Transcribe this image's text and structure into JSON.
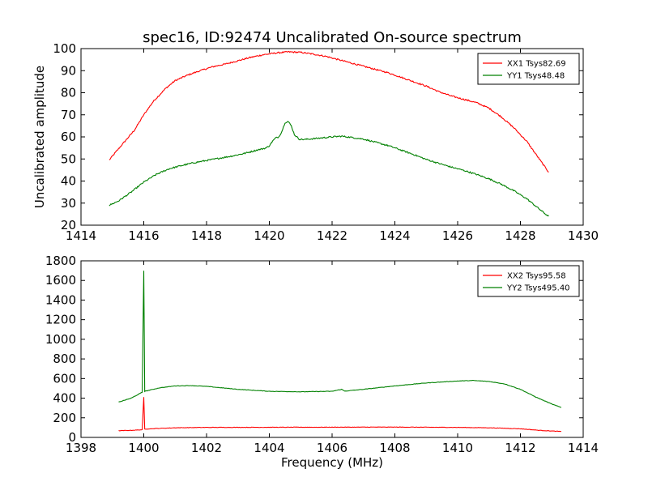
{
  "title": "spec16, ID:92474 Uncalibrated On-source spectrum",
  "chart_data": [
    {
      "type": "line",
      "ylabel": "Uncalibrated amplitude",
      "xlabel": "",
      "xlim": [
        1414,
        1430
      ],
      "ylim": [
        20,
        100
      ],
      "x_ticks": [
        1414,
        1416,
        1418,
        1420,
        1422,
        1424,
        1426,
        1428,
        1430
      ],
      "y_ticks": [
        20,
        30,
        40,
        50,
        60,
        70,
        80,
        90,
        100
      ],
      "legend_position": "top-right",
      "grid": false,
      "series": [
        {
          "name": "XX1 Tsys82.69",
          "color": "#ff0000",
          "points": [
            [
              1414.9,
              49.5
            ],
            [
              1415.1,
              53
            ],
            [
              1415.4,
              58
            ],
            [
              1415.7,
              63
            ],
            [
              1416.0,
              70
            ],
            [
              1416.3,
              76
            ],
            [
              1416.7,
              82
            ],
            [
              1417.0,
              85.5
            ],
            [
              1417.4,
              88
            ],
            [
              1417.8,
              90
            ],
            [
              1418.2,
              91.8
            ],
            [
              1418.6,
              93
            ],
            [
              1419.0,
              94.5
            ],
            [
              1419.4,
              96
            ],
            [
              1419.8,
              97.2
            ],
            [
              1420.2,
              98
            ],
            [
              1420.6,
              98.5
            ],
            [
              1421.0,
              98.3
            ],
            [
              1421.4,
              97.5
            ],
            [
              1421.8,
              96.5
            ],
            [
              1422.2,
              95
            ],
            [
              1422.6,
              93.5
            ],
            [
              1423.0,
              92
            ],
            [
              1423.4,
              90.5
            ],
            [
              1423.8,
              89
            ],
            [
              1424.2,
              87
            ],
            [
              1424.6,
              85
            ],
            [
              1425.0,
              83
            ],
            [
              1425.4,
              80.5
            ],
            [
              1425.8,
              78.5
            ],
            [
              1426.2,
              77
            ],
            [
              1426.6,
              75.5
            ],
            [
              1427.0,
              73
            ],
            [
              1427.4,
              69
            ],
            [
              1427.8,
              64
            ],
            [
              1428.2,
              58
            ],
            [
              1428.5,
              52
            ],
            [
              1428.8,
              46
            ],
            [
              1428.9,
              44
            ]
          ]
        },
        {
          "name": "YY1 Tsys48.48",
          "color": "#008000",
          "points": [
            [
              1414.9,
              29
            ],
            [
              1415.2,
              31
            ],
            [
              1415.6,
              35
            ],
            [
              1416.0,
              39.5
            ],
            [
              1416.4,
              43
            ],
            [
              1416.8,
              45.5
            ],
            [
              1417.2,
              47
            ],
            [
              1417.6,
              48.3
            ],
            [
              1418.0,
              49.3
            ],
            [
              1418.4,
              50.3
            ],
            [
              1418.8,
              51.3
            ],
            [
              1419.2,
              52.5
            ],
            [
              1419.6,
              54
            ],
            [
              1419.9,
              55
            ],
            [
              1420.0,
              56
            ],
            [
              1420.1,
              58
            ],
            [
              1420.2,
              59.5
            ],
            [
              1420.3,
              60
            ],
            [
              1420.4,
              62.5
            ],
            [
              1420.5,
              66.5
            ],
            [
              1420.6,
              67
            ],
            [
              1420.7,
              65
            ],
            [
              1420.8,
              61
            ],
            [
              1420.95,
              59
            ],
            [
              1421.1,
              58.8
            ],
            [
              1421.5,
              59.3
            ],
            [
              1422.0,
              60
            ],
            [
              1422.3,
              60.3
            ],
            [
              1422.6,
              59.8
            ],
            [
              1423.0,
              59
            ],
            [
              1423.4,
              57.5
            ],
            [
              1423.8,
              56
            ],
            [
              1424.2,
              54
            ],
            [
              1424.6,
              52
            ],
            [
              1425.0,
              49.8
            ],
            [
              1425.4,
              48
            ],
            [
              1425.8,
              46.3
            ],
            [
              1426.2,
              44.8
            ],
            [
              1426.6,
              43
            ],
            [
              1427.0,
              41
            ],
            [
              1427.4,
              38.5
            ],
            [
              1427.8,
              35.5
            ],
            [
              1428.2,
              32
            ],
            [
              1428.5,
              28.5
            ],
            [
              1428.8,
              25
            ],
            [
              1428.9,
              24
            ]
          ]
        }
      ]
    },
    {
      "type": "line",
      "ylabel": "",
      "xlabel": "Frequency (MHz)",
      "xlim": [
        1398,
        1414
      ],
      "ylim": [
        0,
        1800
      ],
      "x_ticks": [
        1398,
        1400,
        1402,
        1404,
        1406,
        1408,
        1410,
        1412,
        1414
      ],
      "y_ticks": [
        0,
        200,
        400,
        600,
        800,
        1000,
        1200,
        1400,
        1600,
        1800
      ],
      "legend_position": "top-right",
      "grid": false,
      "series": [
        {
          "name": "XX2 Tsys95.58",
          "color": "#ff0000",
          "points": [
            [
              1399.2,
              68
            ],
            [
              1399.6,
              72
            ],
            [
              1399.95,
              78
            ],
            [
              1400.0,
              410
            ],
            [
              1400.03,
              85
            ],
            [
              1400.5,
              92
            ],
            [
              1401.0,
              98
            ],
            [
              1402.0,
              102
            ],
            [
              1404.0,
              103
            ],
            [
              1406.0,
              104
            ],
            [
              1408.0,
              105
            ],
            [
              1410.0,
              102
            ],
            [
              1411.0,
              98
            ],
            [
              1412.0,
              88
            ],
            [
              1412.6,
              72
            ],
            [
              1413.3,
              60
            ]
          ]
        },
        {
          "name": "YY2 Tsys495.40",
          "color": "#008000",
          "points": [
            [
              1399.2,
              360
            ],
            [
              1399.6,
              400
            ],
            [
              1399.95,
              460
            ],
            [
              1400.0,
              1700
            ],
            [
              1400.03,
              470
            ],
            [
              1400.5,
              505
            ],
            [
              1401.0,
              525
            ],
            [
              1401.5,
              528
            ],
            [
              1402.0,
              520
            ],
            [
              1402.5,
              505
            ],
            [
              1403.0,
              490
            ],
            [
              1404.0,
              470
            ],
            [
              1405.0,
              465
            ],
            [
              1406.0,
              470
            ],
            [
              1406.3,
              490
            ],
            [
              1406.4,
              472
            ],
            [
              1407.0,
              490
            ],
            [
              1408.0,
              525
            ],
            [
              1409.0,
              555
            ],
            [
              1410.0,
              575
            ],
            [
              1410.5,
              580
            ],
            [
              1411.0,
              570
            ],
            [
              1411.5,
              545
            ],
            [
              1412.0,
              490
            ],
            [
              1412.5,
              410
            ],
            [
              1413.0,
              340
            ],
            [
              1413.3,
              305
            ]
          ]
        }
      ]
    }
  ]
}
